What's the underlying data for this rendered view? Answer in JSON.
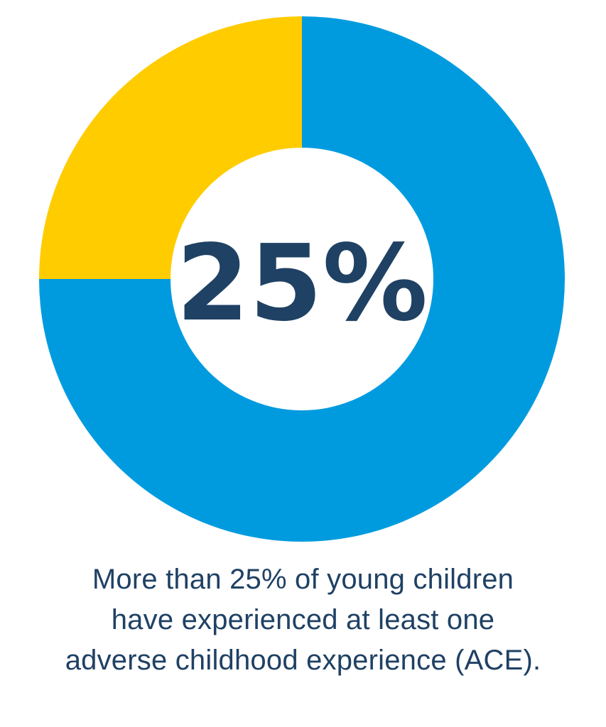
{
  "chart_data": {
    "type": "pie",
    "variant": "donut",
    "slices": [
      {
        "label": "",
        "value": 25,
        "color": "#ffcc00"
      },
      {
        "label": "",
        "value": 75,
        "color": "#009bdf"
      }
    ],
    "center_text": "25%",
    "legend": "none"
  },
  "caption": {
    "line1": "More than 25% of young children",
    "line2": "have experienced at least one",
    "line3": "adverse childhood experience (ACE)."
  },
  "colors": {
    "highlight": "#ffcc00",
    "remainder": "#009bdf",
    "text": "#1f4164",
    "background": "#ffffff"
  }
}
